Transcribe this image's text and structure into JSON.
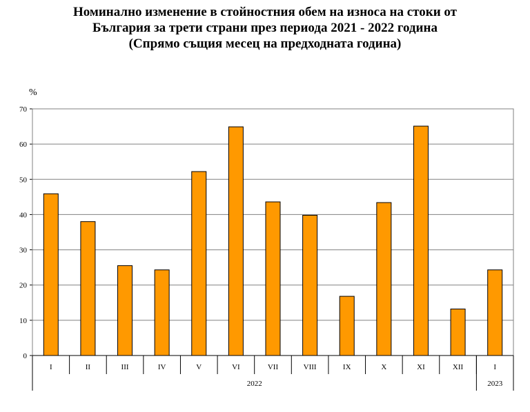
{
  "chart_data": {
    "type": "bar",
    "title_lines": [
      "Номинално изменение в стойностния обем на износа на стоки от",
      "България за трети страни през периода 2021 - 2022 година",
      "(Спрямо същия месец на предходната година)"
    ],
    "ylabel": "%",
    "ylim": [
      0,
      70
    ],
    "yticks": [
      0,
      10,
      20,
      30,
      40,
      50,
      60,
      70
    ],
    "categories": [
      "I",
      "II",
      "III",
      "IV",
      "V",
      "VI",
      "VII",
      "VIII",
      "IX",
      "X",
      "XI",
      "XII",
      "I"
    ],
    "values": [
      45.9,
      38.0,
      25.5,
      24.3,
      52.2,
      64.9,
      43.6,
      39.8,
      16.8,
      43.4,
      65.1,
      13.2,
      24.3
    ],
    "groups": [
      {
        "label": "2022",
        "count": 12
      },
      {
        "label": "2023",
        "count": 1
      }
    ],
    "bar_color": "#FF9900",
    "grid": true
  }
}
